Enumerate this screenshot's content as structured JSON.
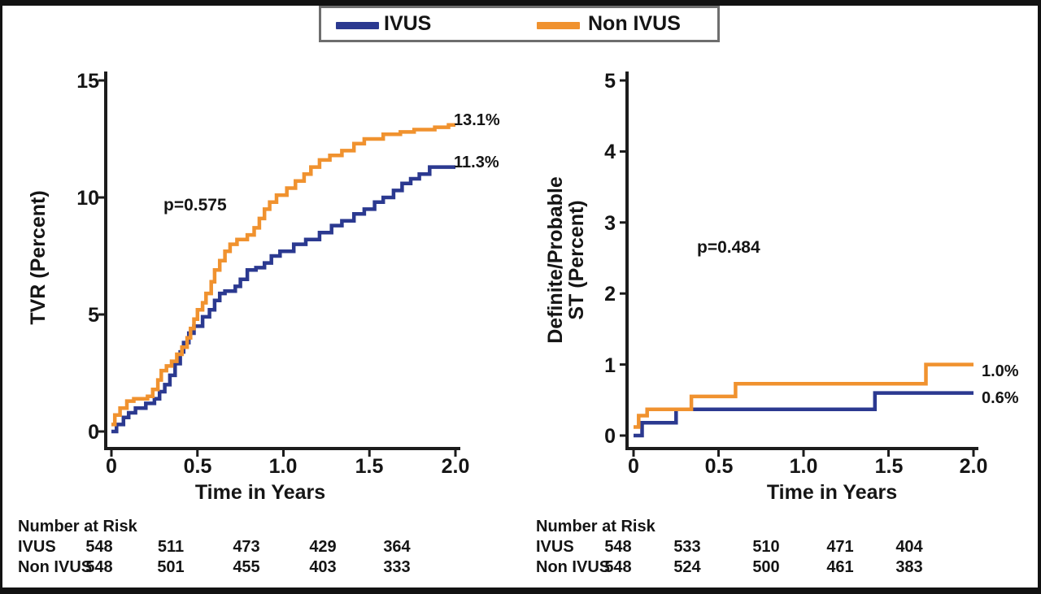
{
  "figure": {
    "legend": {
      "items": [
        {
          "label": "IVUS",
          "color": "#2b3990"
        },
        {
          "label": "Non IVUS",
          "color": "#f0922f"
        }
      ]
    }
  },
  "chart_data": [
    {
      "type": "line",
      "subtype": "kaplan-meier-step",
      "title": "",
      "xlabel": "Time in Years",
      "ylabel": "TVR (Percent)",
      "xlim": [
        0,
        2
      ],
      "ylim": [
        0,
        15
      ],
      "x_ticks": [
        0,
        0.5,
        1,
        1.5,
        2
      ],
      "y_ticks": [
        0,
        5,
        10,
        15
      ],
      "x_tick_labels": [
        "0",
        "0.5",
        "1.0",
        "1.5",
        "2.0"
      ],
      "y_tick_labels": [
        "0",
        "5",
        "10",
        "15"
      ],
      "grid": false,
      "p_value": "p=0.575",
      "series": [
        {
          "name": "IVUS",
          "color": "#2b3990",
          "end_label": "11.3%",
          "points": [
            [
              0,
              0
            ],
            [
              0.03,
              0.3
            ],
            [
              0.07,
              0.6
            ],
            [
              0.1,
              0.8
            ],
            [
              0.14,
              1.0
            ],
            [
              0.2,
              1.2
            ],
            [
              0.25,
              1.4
            ],
            [
              0.28,
              1.7
            ],
            [
              0.31,
              2.0
            ],
            [
              0.34,
              2.4
            ],
            [
              0.37,
              2.9
            ],
            [
              0.4,
              3.4
            ],
            [
              0.42,
              3.8
            ],
            [
              0.45,
              4.2
            ],
            [
              0.48,
              4.5
            ],
            [
              0.53,
              4.9
            ],
            [
              0.57,
              5.2
            ],
            [
              0.6,
              5.6
            ],
            [
              0.63,
              5.9
            ],
            [
              0.66,
              6.0
            ],
            [
              0.72,
              6.2
            ],
            [
              0.75,
              6.5
            ],
            [
              0.79,
              6.9
            ],
            [
              0.84,
              7.0
            ],
            [
              0.89,
              7.2
            ],
            [
              0.93,
              7.5
            ],
            [
              0.98,
              7.7
            ],
            [
              1.06,
              8.0
            ],
            [
              1.13,
              8.2
            ],
            [
              1.21,
              8.5
            ],
            [
              1.28,
              8.8
            ],
            [
              1.34,
              9.0
            ],
            [
              1.41,
              9.3
            ],
            [
              1.47,
              9.5
            ],
            [
              1.53,
              9.8
            ],
            [
              1.58,
              10.0
            ],
            [
              1.64,
              10.3
            ],
            [
              1.69,
              10.6
            ],
            [
              1.74,
              10.8
            ],
            [
              1.79,
              11.0
            ],
            [
              1.85,
              11.3
            ],
            [
              2.0,
              11.3
            ]
          ]
        },
        {
          "name": "Non IVUS",
          "color": "#f0922f",
          "end_label": "13.1%",
          "points": [
            [
              0,
              0.3
            ],
            [
              0.02,
              0.7
            ],
            [
              0.05,
              1.0
            ],
            [
              0.09,
              1.3
            ],
            [
              0.13,
              1.4
            ],
            [
              0.21,
              1.5
            ],
            [
              0.24,
              1.8
            ],
            [
              0.27,
              2.2
            ],
            [
              0.29,
              2.6
            ],
            [
              0.32,
              2.8
            ],
            [
              0.35,
              3.0
            ],
            [
              0.38,
              3.3
            ],
            [
              0.41,
              3.6
            ],
            [
              0.44,
              4.0
            ],
            [
              0.46,
              4.4
            ],
            [
              0.48,
              4.8
            ],
            [
              0.5,
              5.2
            ],
            [
              0.53,
              5.5
            ],
            [
              0.55,
              5.9
            ],
            [
              0.58,
              6.4
            ],
            [
              0.6,
              6.9
            ],
            [
              0.63,
              7.3
            ],
            [
              0.66,
              7.7
            ],
            [
              0.69,
              8.0
            ],
            [
              0.73,
              8.2
            ],
            [
              0.79,
              8.4
            ],
            [
              0.83,
              8.7
            ],
            [
              0.86,
              9.1
            ],
            [
              0.89,
              9.5
            ],
            [
              0.92,
              9.8
            ],
            [
              0.96,
              10.1
            ],
            [
              1.02,
              10.4
            ],
            [
              1.07,
              10.7
            ],
            [
              1.12,
              11.0
            ],
            [
              1.16,
              11.3
            ],
            [
              1.21,
              11.6
            ],
            [
              1.27,
              11.8
            ],
            [
              1.34,
              12.0
            ],
            [
              1.41,
              12.3
            ],
            [
              1.47,
              12.5
            ],
            [
              1.58,
              12.7
            ],
            [
              1.68,
              12.8
            ],
            [
              1.76,
              12.9
            ],
            [
              1.88,
              13.0
            ],
            [
              1.96,
              13.1
            ],
            [
              2.0,
              13.1
            ]
          ]
        }
      ],
      "number_at_risk": {
        "title": "Number at Risk",
        "rows": [
          {
            "label": "IVUS",
            "values": [
              "548",
              "511",
              "473",
              "429",
              "364"
            ]
          },
          {
            "label": "Non IVUS",
            "values": [
              "548",
              "501",
              "455",
              "403",
              "333"
            ]
          }
        ]
      }
    },
    {
      "type": "line",
      "subtype": "kaplan-meier-step",
      "title": "",
      "xlabel": "Time in Years",
      "ylabel": "Definite/Probable ST (Percent)",
      "ylabel_lines": [
        "Definite/Probable",
        "ST (Percent)"
      ],
      "xlim": [
        0,
        2
      ],
      "ylim": [
        0,
        5
      ],
      "x_ticks": [
        0,
        0.5,
        1,
        1.5,
        2
      ],
      "y_ticks": [
        0,
        1,
        2,
        3,
        4,
        5
      ],
      "x_tick_labels": [
        "0",
        "0.5",
        "1.0",
        "1.5",
        "2.0"
      ],
      "y_tick_labels": [
        "0",
        "1",
        "2",
        "3",
        "4",
        "5"
      ],
      "grid": false,
      "p_value": "p=0.484",
      "series": [
        {
          "name": "IVUS",
          "color": "#2b3990",
          "end_label": "0.6%",
          "points": [
            [
              0,
              0
            ],
            [
              0.05,
              0.18
            ],
            [
              0.25,
              0.37
            ],
            [
              1.42,
              0.6
            ],
            [
              2.0,
              0.6
            ]
          ]
        },
        {
          "name": "Non IVUS",
          "color": "#f0922f",
          "end_label": "1.0%",
          "points": [
            [
              0,
              0.12
            ],
            [
              0.03,
              0.28
            ],
            [
              0.08,
              0.37
            ],
            [
              0.34,
              0.55
            ],
            [
              0.6,
              0.73
            ],
            [
              1.72,
              1.0
            ],
            [
              2.0,
              1.0
            ]
          ]
        }
      ],
      "number_at_risk": {
        "title": "Number at Risk",
        "rows": [
          {
            "label": "IVUS",
            "values": [
              "548",
              "533",
              "510",
              "471",
              "404"
            ]
          },
          {
            "label": "Non IVUS",
            "values": [
              "548",
              "524",
              "500",
              "461",
              "383"
            ]
          }
        ]
      }
    }
  ]
}
